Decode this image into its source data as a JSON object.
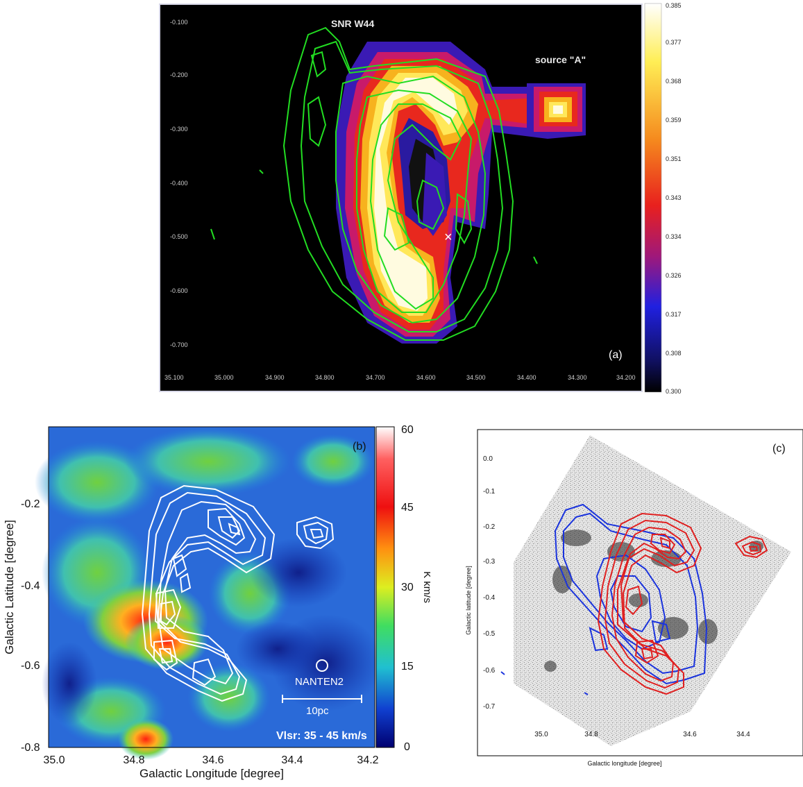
{
  "panel_a": {
    "label_snr": "SNR W44",
    "label_source": "source \"A\"",
    "panel_tag": "(a)",
    "marker": "×",
    "y_ticks": [
      "-0.100",
      "-0.200",
      "-0.300",
      "-0.400",
      "-0.500",
      "-0.600",
      "-0.700"
    ],
    "x_ticks": [
      "35.100",
      "35.000",
      "34.900",
      "34.800",
      "34.700",
      "34.600",
      "34.500",
      "34.400",
      "34.300",
      "34.200"
    ],
    "colorbar_ticks": [
      "0.385",
      "0.377",
      "0.368",
      "0.359",
      "0.351",
      "0.343",
      "0.334",
      "0.326",
      "0.317",
      "0.308",
      "0.300"
    ]
  },
  "panel_b": {
    "panel_tag": "(b)",
    "x_label": "Galactic Longitude [degree]",
    "y_label": "Galactic Latitude [degree]",
    "x_ticks": [
      "35.0",
      "34.8",
      "34.6",
      "34.4",
      "34.2"
    ],
    "y_ticks": [
      "-0.2",
      "-0.4",
      "-0.6",
      "-0.8"
    ],
    "colorbar_ticks": [
      "60",
      "45",
      "30",
      "15",
      "0"
    ],
    "colorbar_label": "K km/s",
    "beam_label": "NANTEN2",
    "scale_label": "10pc",
    "velocity_label": "Vlsr: 35 - 45 km/s"
  },
  "panel_c": {
    "panel_tag": "(c)",
    "x_label": "Galactic longitude [degree]",
    "y_label": "Galactic latitude [degree]",
    "x_ticks": [
      "35.0",
      "34.8",
      "34.6",
      "34.4"
    ],
    "y_ticks": [
      "0.0",
      "-0.1",
      "-0.2",
      "-0.3",
      "-0.4",
      "-0.5",
      "-0.6",
      "-0.7"
    ]
  },
  "colors": {
    "green_contour": "#22dd22",
    "white_contour": "#ffffff",
    "red_contour": "#e02020",
    "blue_contour": "#1a33dd"
  }
}
